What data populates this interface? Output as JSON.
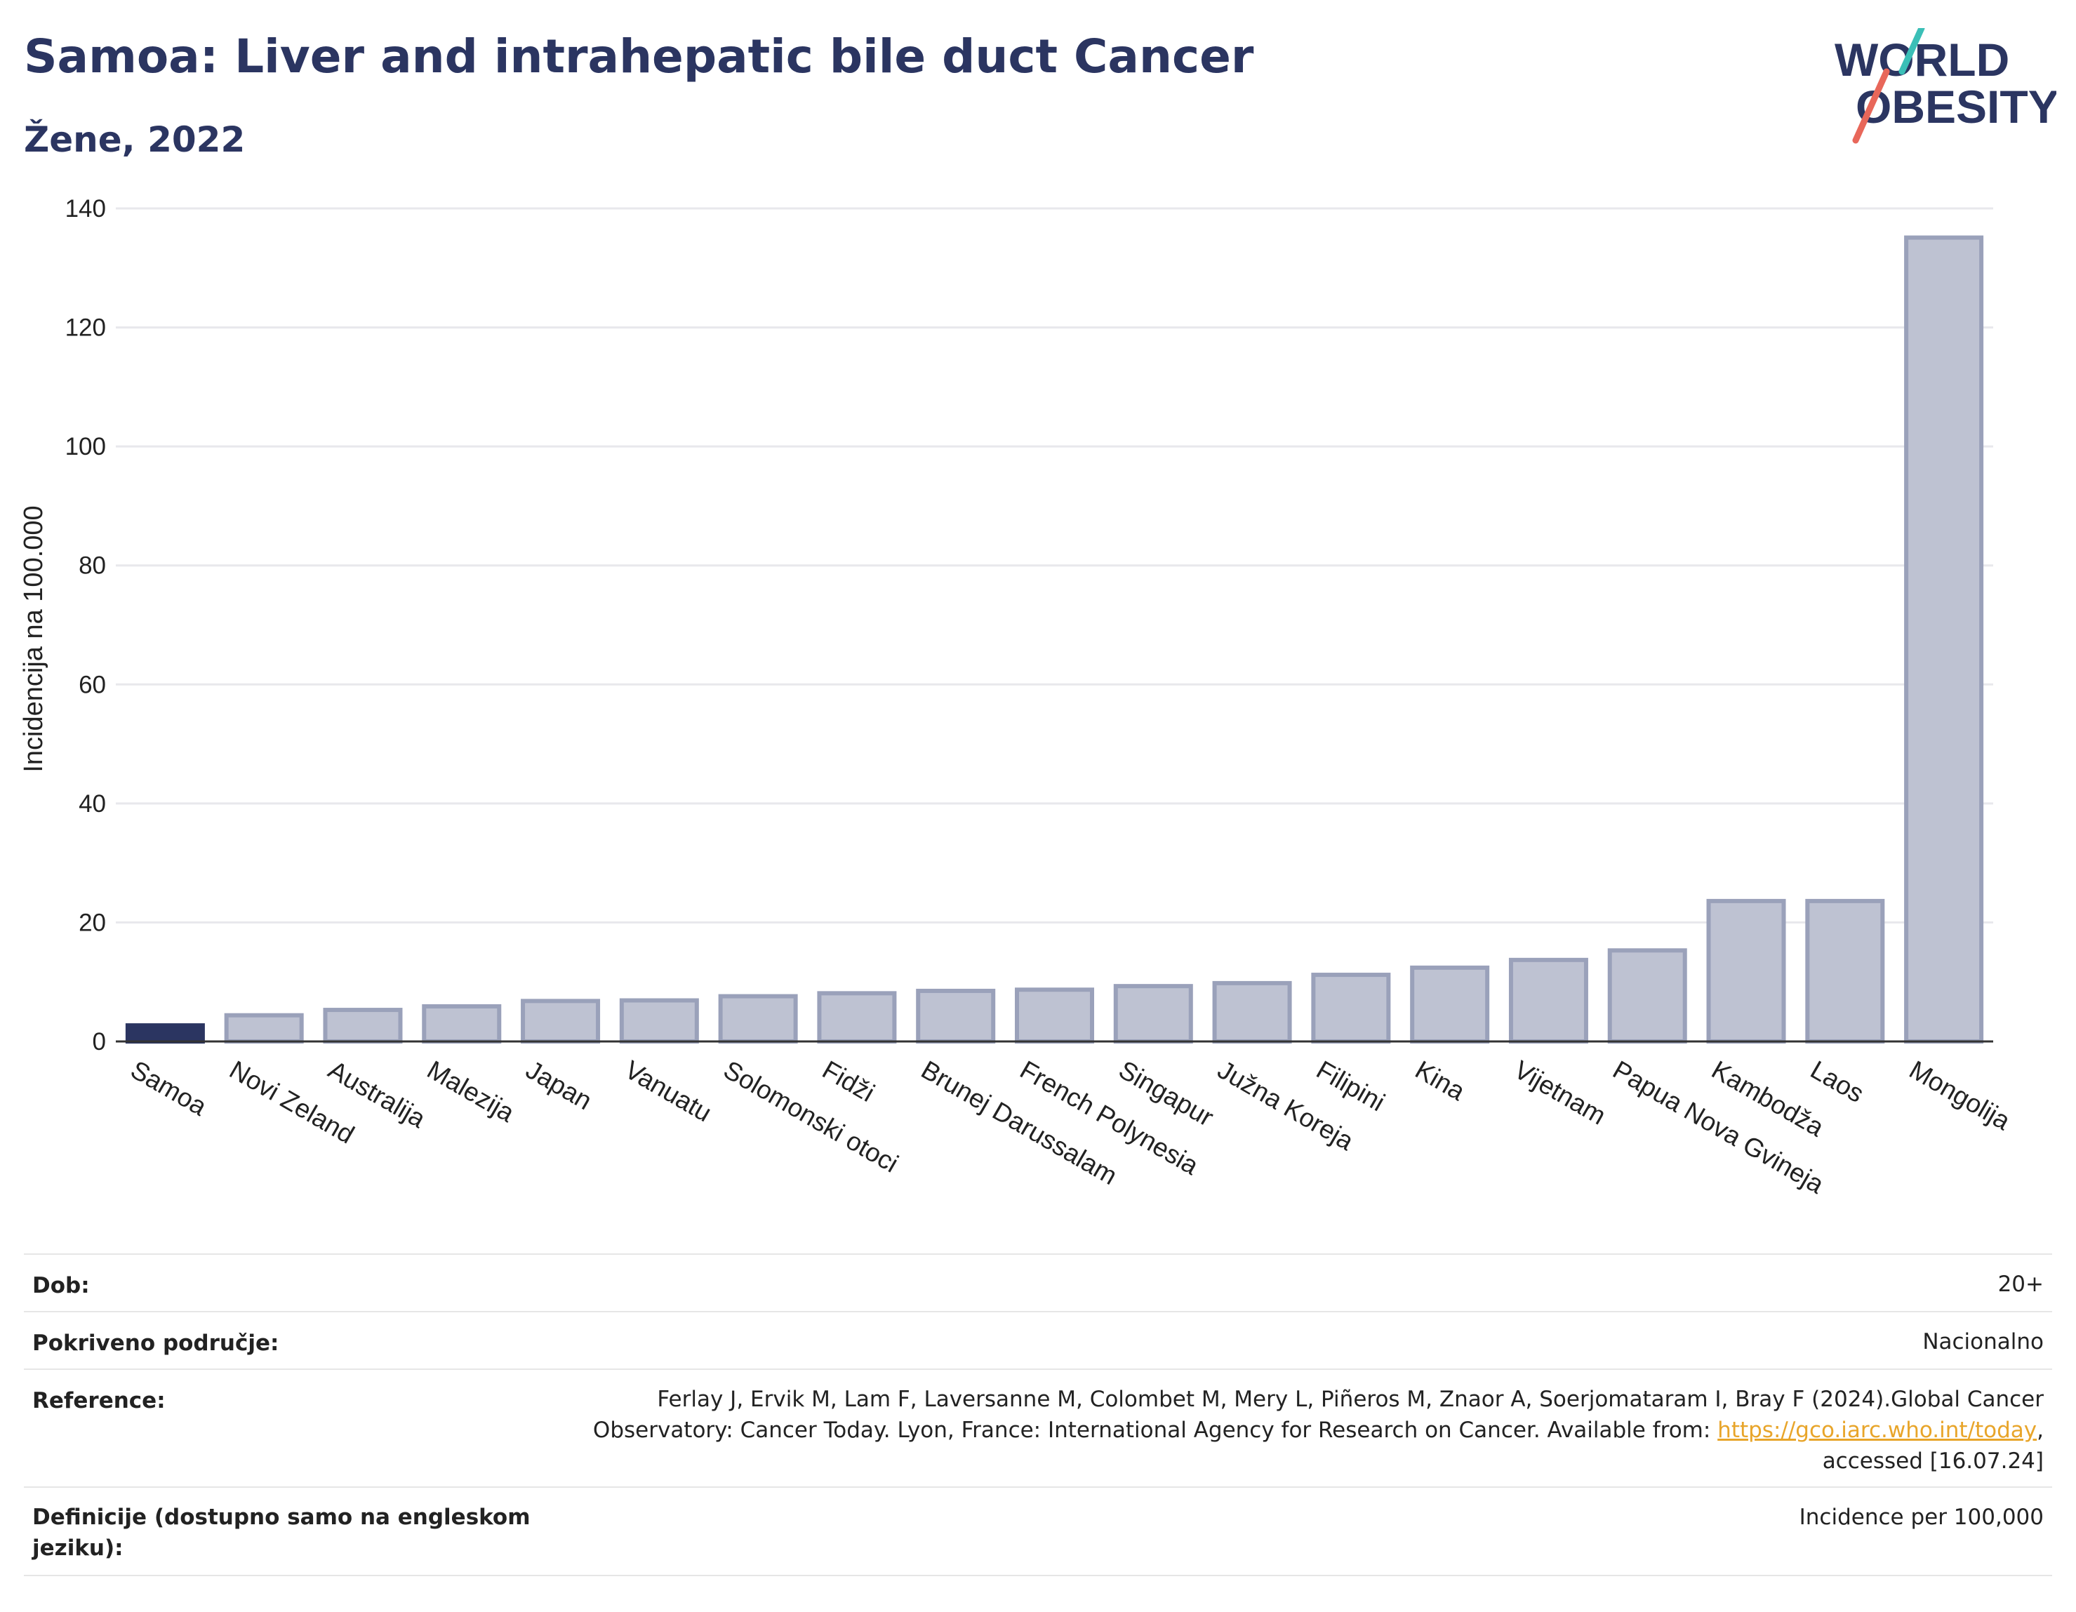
{
  "title": "Samoa: Liver and intrahepatic bile duct Cancer",
  "subtitle": "Žene, 2022",
  "logo": {
    "line1": "WORLD",
    "line2": "OBESITY"
  },
  "colors": {
    "title": "#2b3561",
    "highlight_bar": "#2b3561",
    "other_bar": "#bec2d2",
    "other_bar_border": "#9aa1ba",
    "link": "#e8a52a",
    "logo_teal": "#3bbfb7",
    "logo_red": "#e8675a"
  },
  "chart_data": {
    "type": "bar",
    "title": "",
    "xlabel": "",
    "ylabel": "Incidencija na 100.000",
    "ylim": [
      0,
      140
    ],
    "yticks": [
      0,
      20,
      40,
      60,
      80,
      100,
      120,
      140
    ],
    "grid": true,
    "highlight": "Samoa",
    "categories": [
      "Samoa",
      "Novi Zeland",
      "Australija",
      "Malezija",
      "Japan",
      "Vanuatu",
      "Solomonski otoci",
      "Fidži",
      "Brunej Darussalam",
      "French Polynesia",
      "Singapur",
      "Južna Koreja",
      "Filipini",
      "Kina",
      "Vijetnam",
      "Papua Nova Gvineja",
      "Kambodža",
      "Laos",
      "Mongolija"
    ],
    "values": [
      2.7,
      4.4,
      5.3,
      5.9,
      6.8,
      6.9,
      7.6,
      8.1,
      8.5,
      8.7,
      9.3,
      9.8,
      11.2,
      12.4,
      13.7,
      15.3,
      23.6,
      23.6,
      135.1
    ]
  },
  "meta": {
    "dob_label": "Dob:",
    "dob_value": "20+",
    "coverage_label": "Pokriveno područje:",
    "coverage_value": "Nacionalno",
    "reference_label": "Reference:",
    "reference_line1": "Ferlay J, Ervik M, Lam F, Laversanne M, Colombet M, Mery L, Piñeros M, Znaor A, Soerjomataram I, Bray F (2024).Global Cancer",
    "reference_line2": "Observatory: Cancer Today. Lyon, France: International Agency for Research on Cancer. Available from: ",
    "reference_link": "https://gco.iarc.who.int/today",
    "reference_line2_end": ",",
    "reference_line3": "accessed [16.07.24]",
    "definitions_label_line1": "Definicije (dostupno samo na engleskom",
    "definitions_label_line2": "jeziku):",
    "definitions_value": "Incidence per 100,000"
  }
}
